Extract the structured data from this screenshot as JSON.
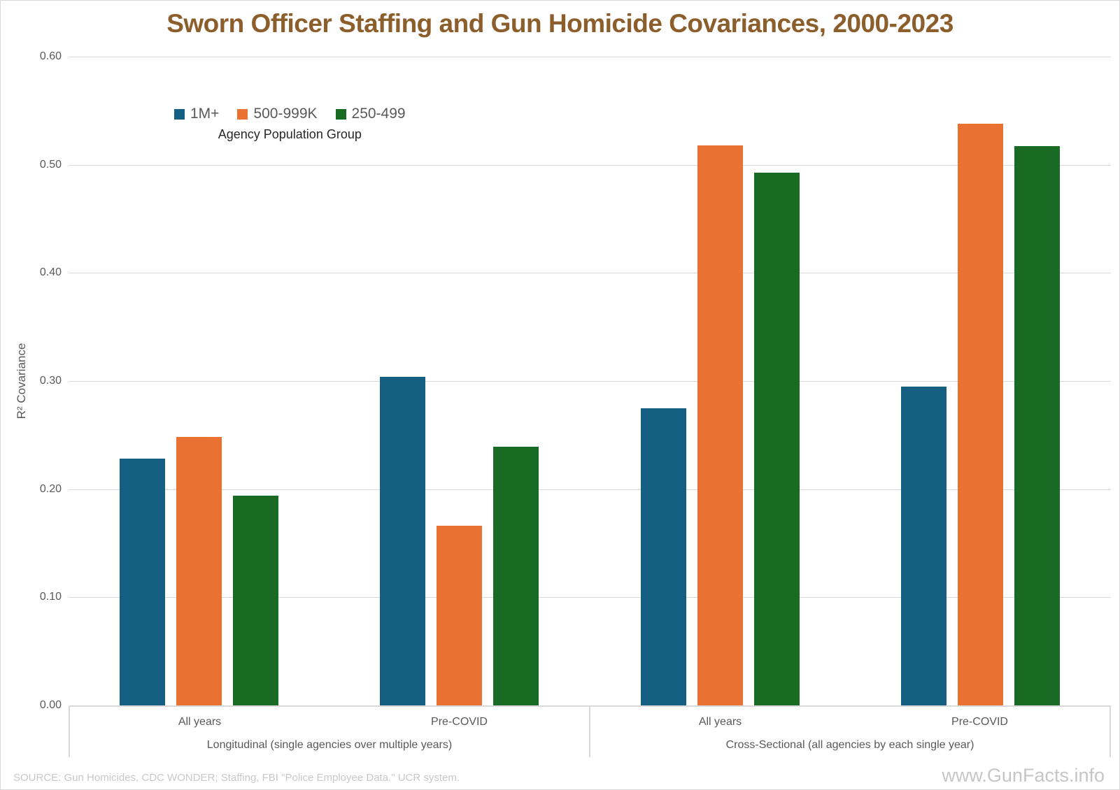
{
  "title": "Sworn Officer Staffing and Gun Homicide Covariances, 2000-2023",
  "y_axis": {
    "title": "R² Covariance",
    "tick_labels": [
      "0.60",
      "0.50",
      "0.40",
      "0.30",
      "0.20",
      "0.10",
      "0.00"
    ]
  },
  "source": "SOURCE: Gun Homicides, CDC WONDER; Staffing, FBI \"Police Employee Data.\" UCR system.",
  "watermark": "www.GunFacts.info",
  "colors": {
    "title_text": "#8B5E2C",
    "axis_text": "#595959",
    "legend_title_text": "#262626",
    "gridline": "#D9D9D9",
    "border": "#D9D9D9",
    "muted_text": "#C8C8C8"
  },
  "chart_data": {
    "type": "bar",
    "title": "Sworn Officer Staffing and Gun Homicide Covariances, 2000-2023",
    "xlabel": "",
    "ylabel": "R² Covariance",
    "ylim": [
      0,
      0.6
    ],
    "yticks": [
      0.0,
      0.1,
      0.2,
      0.3,
      0.4,
      0.5,
      0.6
    ],
    "grid": true,
    "legend_title": "Agency Population Group",
    "legend_position": "upper-left-inside",
    "categories": [
      "All years",
      "Pre-COVID",
      "All years",
      "Pre-COVID"
    ],
    "sections": [
      {
        "label": "Longitudinal (single agencies over multiple years)",
        "categories": [
          "All years",
          "Pre-COVID"
        ]
      },
      {
        "label": "Cross-Sectional (all agencies by each single year)",
        "categories": [
          "All years",
          "Pre-COVID"
        ]
      }
    ],
    "series": [
      {
        "name": "1M+",
        "color": "#156082",
        "values": [
          0.228,
          0.304,
          0.275,
          0.295
        ]
      },
      {
        "name": "500-999K",
        "color": "#E97132",
        "values": [
          0.248,
          0.166,
          0.518,
          0.538
        ]
      },
      {
        "name": "250-499",
        "color": "#196B24",
        "values": [
          0.194,
          0.239,
          0.493,
          0.517
        ]
      }
    ]
  }
}
